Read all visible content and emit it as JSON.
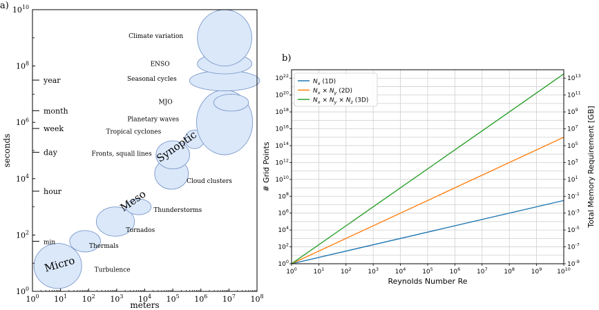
{
  "chart_data": [
    {
      "panel_label": "a)",
      "type": "scatter",
      "xlabel": "meters",
      "ylabel": "seconds",
      "xscale": "log",
      "yscale": "log",
      "xlim": [
        1,
        100000000
      ],
      "ylim": [
        1,
        10000000000
      ],
      "x_tick_labels": [
        "10^0",
        "10^1",
        "10^2",
        "10^3",
        "10^4",
        "10^5",
        "10^6",
        "10^7",
        "10^8"
      ],
      "y_tick_labels": [
        "10^0",
        "10^2",
        "10^4",
        "10^6",
        "10^8",
        "10^10"
      ],
      "time_marks": [
        {
          "label": "min",
          "seconds": 60
        },
        {
          "label": "hour",
          "seconds": 3600
        },
        {
          "label": "day",
          "seconds": 86400
        },
        {
          "label": "week",
          "seconds": 604800
        },
        {
          "label": "month",
          "seconds": 2592000
        },
        {
          "label": "year",
          "seconds": 31536000
        }
      ],
      "fill_color": "#dbe8fa",
      "edge_color": "#7a98c9",
      "ellipses": [
        {
          "cx": 8,
          "cy": 8,
          "rx_dec": 0.85,
          "ry_dec": 0.8
        },
        {
          "cx": 75,
          "cy": 60,
          "rx_dec": 0.55,
          "ry_dec": 0.38
        },
        {
          "cx": 900,
          "cy": 300,
          "rx_dec": 0.68,
          "ry_dec": 0.52
        },
        {
          "cx": 6000,
          "cy": 1000,
          "rx_dec": 0.45,
          "ry_dec": 0.28
        },
        {
          "cx": 90000,
          "cy": 15000,
          "rx_dec": 0.6,
          "ry_dec": 0.55
        },
        {
          "cx": 100000,
          "cy": 70000,
          "rx_dec": 0.6,
          "ry_dec": 0.5
        },
        {
          "cx": 600000,
          "cy": 250000,
          "rx_dec": 0.35,
          "ry_dec": 0.33
        },
        {
          "cx": 7000000,
          "cy": 1000000,
          "rx_dec": 1.0,
          "ry_dec": 1.15
        },
        {
          "cx": 12000000,
          "cy": 5000000,
          "rx_dec": 0.62,
          "ry_dec": 0.3
        },
        {
          "cx": 7000000,
          "cy": 30000000,
          "rx_dec": 1.25,
          "ry_dec": 0.36
        },
        {
          "cx": 7000000,
          "cy": 120000000,
          "rx_dec": 0.97,
          "ry_dec": 0.36
        },
        {
          "cx": 7000000,
          "cy": 1000000000,
          "rx_dec": 0.97,
          "ry_dec": 1.0
        }
      ],
      "annotations": [
        {
          "text": "Micro",
          "x": 10,
          "y": 7,
          "size": 15,
          "rotate": -16
        },
        {
          "text": "Meso",
          "x": 4500,
          "y": 1300,
          "size": 15,
          "rotate": -35
        },
        {
          "text": "Synoptic",
          "x": 160000,
          "y": 110000,
          "size": 15,
          "rotate": -35
        },
        {
          "text": "Turbulence",
          "x": 700,
          "y": 5,
          "size": 9,
          "rotate": 0
        },
        {
          "text": "Thermals",
          "x": 350,
          "y": 35,
          "size": 9,
          "rotate": 0
        },
        {
          "text": "Tornados",
          "x": 7000,
          "y": 130,
          "size": 9,
          "rotate": 0
        },
        {
          "text": "Thunderstorms",
          "x": 150000,
          "y": 650,
          "size": 9,
          "rotate": 0
        },
        {
          "text": "Cloud clusters",
          "x": 2000000,
          "y": 7000,
          "size": 9,
          "rotate": 0
        },
        {
          "text": "Fronts, squall lines",
          "x": 1500,
          "y": 65000,
          "size": 9,
          "rotate": 0
        },
        {
          "text": "Tropical cyclones",
          "x": 4000,
          "y": 400000,
          "size": 9,
          "rotate": 0
        },
        {
          "text": "Planetary waves",
          "x": 20000,
          "y": 1100000,
          "size": 9,
          "rotate": 0
        },
        {
          "text": "MJO",
          "x": 55000,
          "y": 4500000,
          "size": 9,
          "rotate": 0
        },
        {
          "text": "Seasonal cycles",
          "x": 18000,
          "y": 30000000,
          "size": 9,
          "rotate": 0
        },
        {
          "text": "ENSO",
          "x": 35000,
          "y": 100000000,
          "size": 9,
          "rotate": 0
        },
        {
          "text": "Climate variation",
          "x": 25000,
          "y": 1000000000,
          "size": 9,
          "rotate": 0
        }
      ]
    },
    {
      "panel_label": "b)",
      "type": "line",
      "xlabel": "Reynolds Number Re",
      "ylabel": "# Grid Points",
      "y2label": "Total Memory Requirement [GB]",
      "xscale": "log",
      "yscale": "log",
      "xlim": [
        1,
        10000000000
      ],
      "ylim": [
        1,
        1e+23
      ],
      "grid": true,
      "legend_position": "top-left",
      "x_tick_labels": [
        "10^0",
        "10^1",
        "10^2",
        "10^3",
        "10^4",
        "10^5",
        "10^6",
        "10^7",
        "10^8",
        "10^9",
        "10^10"
      ],
      "y_tick_labels": [
        "10^0",
        "10^2",
        "10^4",
        "10^6",
        "10^8",
        "10^10",
        "10^12",
        "10^14",
        "10^16",
        "10^18",
        "10^20",
        "10^22"
      ],
      "y2_tick_labels": [
        "10^-9",
        "10^-7",
        "10^-5",
        "10^-3",
        "10^-1",
        "10^1",
        "10^3",
        "10^5",
        "10^7",
        "10^9",
        "10^11",
        "10^13"
      ],
      "series": [
        {
          "name": "Nx (1D)",
          "legend_main": "N",
          "legend_sub": "x",
          "legend_rest": " (1D)",
          "color": "#1f77b4",
          "x": [
            1,
            10000000000
          ],
          "y": [
            1,
            31600000.0
          ]
        },
        {
          "name": "Nx × Ny (2D)",
          "legend_main": "N",
          "legend_sub": "x",
          "legend_rest": " × N",
          "legend_sub2": "y",
          "legend_rest2": " (2D)",
          "color": "#ff7f0e",
          "x": [
            1,
            10000000000
          ],
          "y": [
            1,
            1000000000000000.0
          ]
        },
        {
          "name": "Nx × Ny × Nz (3D)",
          "legend_main": "N",
          "legend_sub": "x",
          "legend_rest": " × N",
          "legend_sub2": "y",
          "legend_rest2": " × N",
          "legend_sub3": "z",
          "legend_rest3": " (3D)",
          "color": "#2ca02c",
          "x": [
            1,
            10000000000
          ],
          "y": [
            1,
            3.16e+22
          ]
        }
      ]
    }
  ]
}
